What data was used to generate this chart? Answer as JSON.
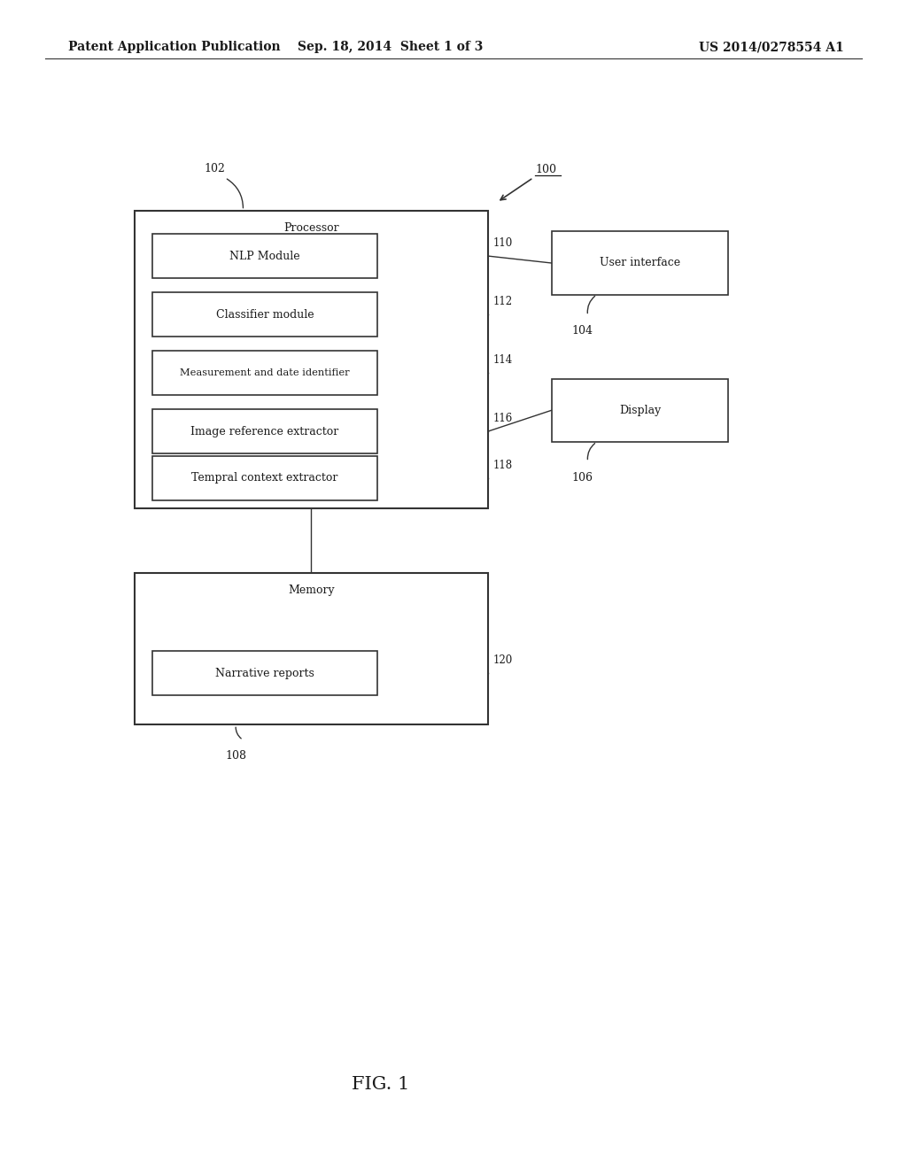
{
  "bg_color": "#ffffff",
  "header_left": "Patent Application Publication",
  "header_center": "Sep. 18, 2014  Sheet 1 of 3",
  "header_right": "US 2014/0278554 A1",
  "fig_label": "FIG. 1",
  "processor_label": "Processor",
  "memory_label": "Memory",
  "nlp_label": "NLP Module",
  "classifier_label": "Classifier module",
  "measure_label": "Measurement and date identifier",
  "imgref_label": "Image reference extractor",
  "tempral_label": "Tempral context extractor",
  "narrative_label": "Narrative reports",
  "ui_label": "User interface",
  "display_label": "Display",
  "label_100": "100",
  "label_102": "102",
  "label_104": "104",
  "label_106": "106",
  "label_108": "108",
  "label_110": "110",
  "label_112": "112",
  "label_114": "114",
  "label_116": "116",
  "label_118": "118",
  "label_120": "120",
  "line_color": "#333333",
  "text_color": "#1a1a1a"
}
